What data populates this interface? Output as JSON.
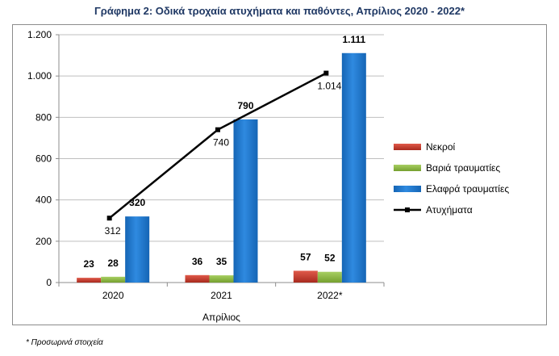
{
  "title": "Γράφημα 2: Οδικά τροχαία ατυχήματα και παθόντες, Απρίλιος 2020 - 2022*",
  "footnote": "* Προσωρινά στοιχεία",
  "chart_data": {
    "type": "bar",
    "title": "Γράφημα 2: Οδικά τροχαία ατυχήματα και παθόντες, Απρίλιος 2020 - 2022*",
    "xlabel": "Απρίλιος",
    "ylabel": "",
    "categories": [
      "2020",
      "2021",
      "2022*"
    ],
    "ylim": [
      0,
      1200
    ],
    "yticks": [
      0,
      200,
      400,
      600,
      800,
      1000,
      1200
    ],
    "ytick_labels": [
      "0",
      "200",
      "400",
      "600",
      "800",
      "1.000",
      "1.200"
    ],
    "grid": true,
    "legend_position": "right",
    "series": [
      {
        "name": "Νεκροί",
        "type": "bar",
        "color": "#c0392b",
        "values": [
          23,
          36,
          57
        ],
        "labels": [
          "23",
          "36",
          "57"
        ]
      },
      {
        "name": "Βαριά τραυματίες",
        "type": "bar",
        "color": "#8ab53f",
        "values": [
          28,
          35,
          52
        ],
        "labels": [
          "28",
          "35",
          "52"
        ]
      },
      {
        "name": "Ελαφρά τραυματίες",
        "type": "bar",
        "color": "#1f77c8",
        "values": [
          320,
          790,
          1111
        ],
        "labels": [
          "320",
          "790",
          "1.111"
        ]
      },
      {
        "name": "Ατυχήματα",
        "type": "line",
        "color": "#000000",
        "values": [
          312,
          740,
          1014
        ],
        "labels": [
          "312",
          "740",
          "1.014"
        ]
      }
    ]
  }
}
